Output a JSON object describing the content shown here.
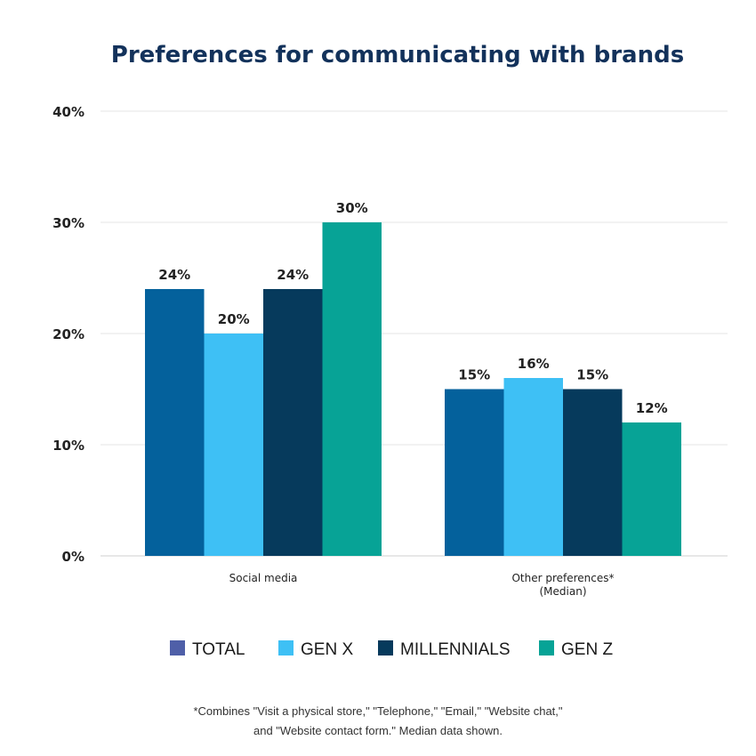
{
  "chart_data": {
    "type": "bar",
    "title": "Preferences for communicating with brands",
    "categories": [
      "Social media",
      "Other preferences*\n(Median)"
    ],
    "series": [
      {
        "name": "TOTAL",
        "values": [
          24,
          15
        ],
        "labels": [
          "24%",
          "15%"
        ],
        "color": "#04619c"
      },
      {
        "name": "GEN X",
        "values": [
          20,
          16
        ],
        "labels": [
          "20%",
          "16%"
        ],
        "color": "#3ec0f5"
      },
      {
        "name": "MILLENNIALS",
        "values": [
          24,
          15
        ],
        "labels": [
          "24%",
          "15%"
        ],
        "color": "#063a5c"
      },
      {
        "name": "GEN Z",
        "values": [
          30,
          12
        ],
        "labels": [
          "30%",
          "12%"
        ],
        "color": "#07a396"
      }
    ],
    "y_ticks": [
      "0%",
      "10%",
      "20%",
      "30%",
      "40%"
    ],
    "ylim": [
      0,
      40
    ],
    "grid": true,
    "legend_placement": "bottom",
    "xlabel": "",
    "ylabel": ""
  },
  "legend_swatch_total": "#4f5fa8",
  "footnote": {
    "line1": "*Combines \"Visit a physical store,\" \"Telephone,\" \"Email,\" \"Website chat,\"",
    "line2": "and \"Website contact form.\" Median data shown."
  }
}
